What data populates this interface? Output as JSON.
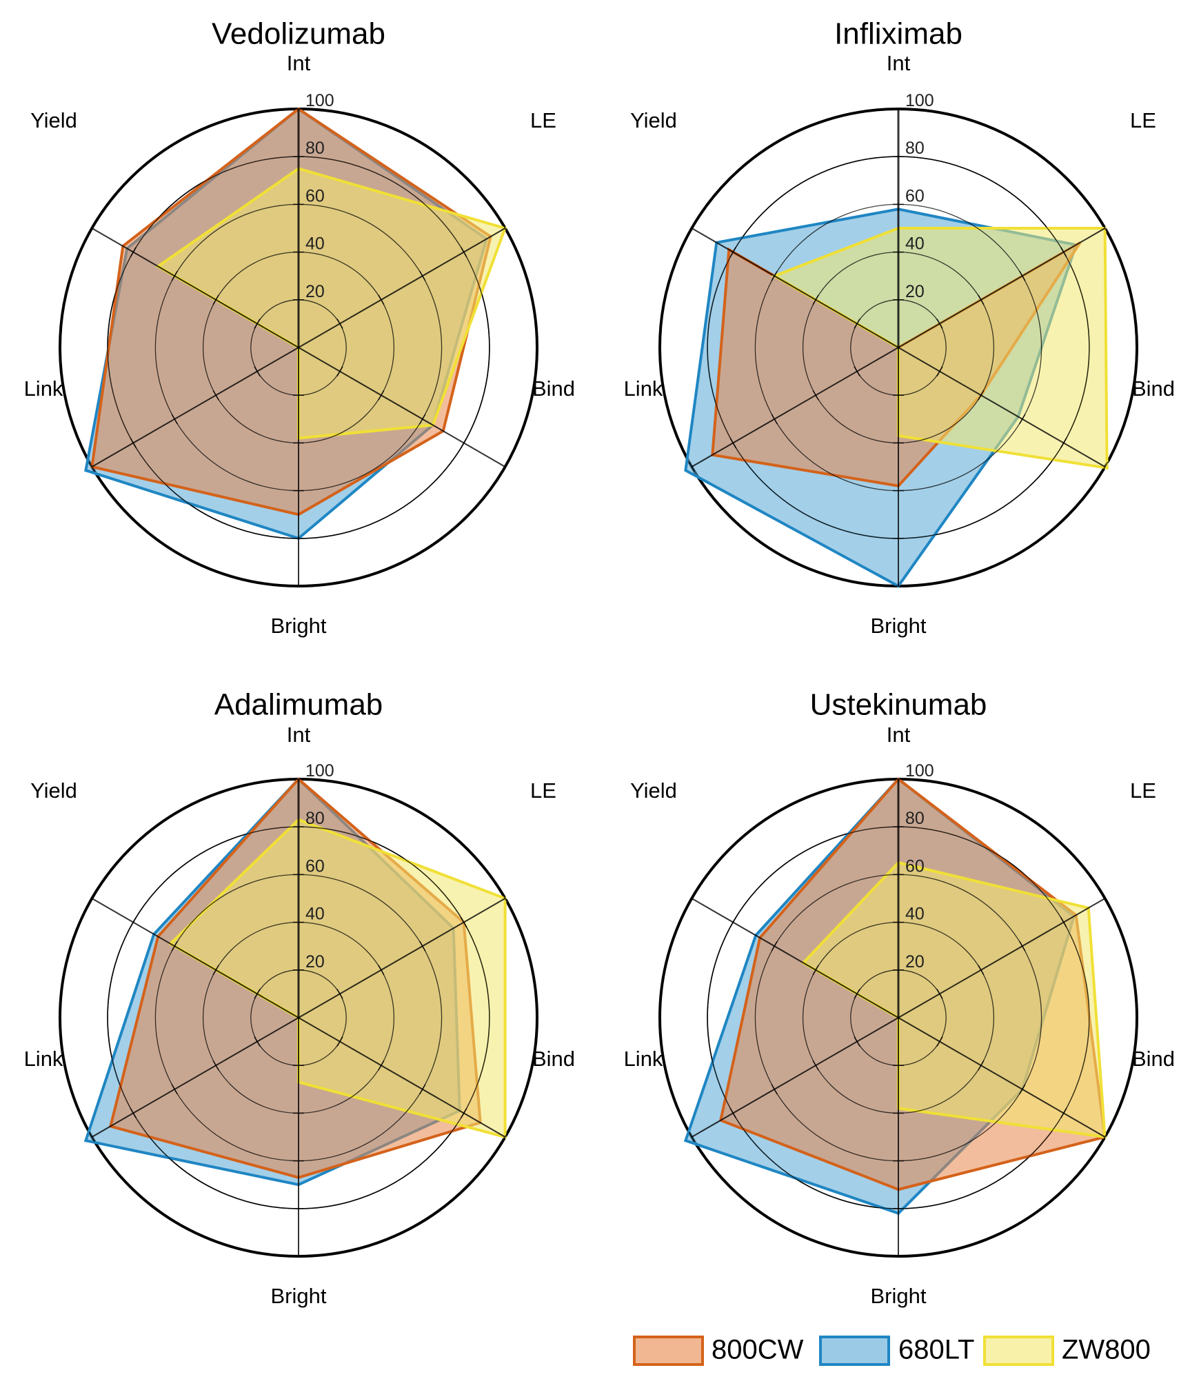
{
  "chart_data": {
    "type": "radar",
    "axes": [
      "Int",
      "LE",
      "Bind",
      "Bright",
      "Link",
      "Yield"
    ],
    "rlim": [
      0,
      100
    ],
    "tick_labels": [
      "20",
      "40",
      "60",
      "80",
      "100"
    ],
    "legend": {
      "position": "bottom-right",
      "items": [
        {
          "name": "800CW",
          "stroke": "#D4621A",
          "fill": "#E8874A"
        },
        {
          "name": "680LT",
          "stroke": "#1F86C3",
          "fill": "#58A7D6"
        },
        {
          "name": "ZW800",
          "stroke": "#F0E036",
          "fill": "#F3E770"
        }
      ]
    },
    "panels": [
      {
        "title": "Vedolizumab",
        "series": [
          {
            "name": "800CW",
            "values": [
              100,
              93,
              70,
              70,
              100,
              85
            ]
          },
          {
            "name": "680LT",
            "values": [
              100,
              91,
              65,
              80,
              103,
              83
            ]
          },
          {
            "name": "ZW800",
            "values": [
              75,
              100,
              65,
              38,
              0,
              68
            ]
          }
        ]
      },
      {
        "title": "Infliximab",
        "series": [
          {
            "name": "800CW",
            "values": [
              0,
              88,
              40,
              58,
              90,
              82
            ]
          },
          {
            "name": "680LT",
            "values": [
              58,
              86,
              58,
              100,
              103,
              88
            ]
          },
          {
            "name": "ZW800",
            "values": [
              50,
              100,
              101,
              37,
              0,
              60
            ]
          }
        ]
      },
      {
        "title": "Adalimumab",
        "series": [
          {
            "name": "800CW",
            "values": [
              100,
              80,
              88,
              67,
              91,
              68
            ]
          },
          {
            "name": "680LT",
            "values": [
              100,
              75,
              78,
              70,
              103,
              70
            ]
          },
          {
            "name": "ZW800",
            "values": [
              83,
              100,
              100,
              27,
              0,
              62
            ]
          }
        ]
      },
      {
        "title": "Ustekinumab",
        "series": [
          {
            "name": "800CW",
            "values": [
              100,
              86,
              100,
              72,
              86,
              67
            ]
          },
          {
            "name": "680LT",
            "values": [
              100,
              85,
              60,
              82,
              103,
              69
            ]
          },
          {
            "name": "ZW800",
            "values": [
              65,
              92,
              100,
              38,
              0,
              46
            ]
          }
        ]
      }
    ]
  }
}
